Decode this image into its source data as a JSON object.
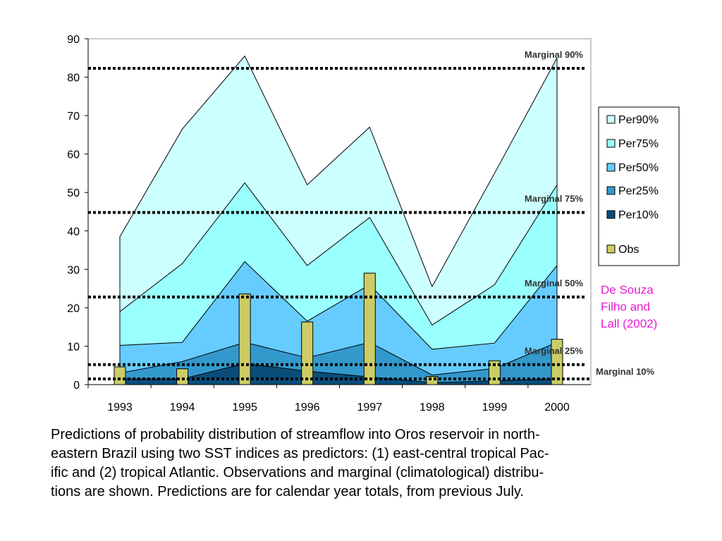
{
  "chart_data": {
    "type": "area",
    "categories": [
      "1993",
      "1994",
      "1995",
      "1996",
      "1997",
      "1998",
      "1999",
      "2000"
    ],
    "ylim": [
      0,
      90
    ],
    "yticks": [
      "0",
      "10",
      "20",
      "30",
      "40",
      "50",
      "60",
      "70",
      "80",
      "90"
    ],
    "grid": false,
    "legend_position": "right",
    "series": [
      {
        "name": "Per90%",
        "type": "area",
        "color": "#ccffff",
        "values": [
          38.5,
          66.5,
          85.5,
          52,
          67,
          25.5,
          55,
          85
        ]
      },
      {
        "name": "Per75%",
        "type": "area",
        "color": "#99ffff",
        "values": [
          19,
          31.5,
          52.5,
          31,
          43.5,
          15.5,
          26,
          52
        ]
      },
      {
        "name": "Per50%",
        "type": "area",
        "color": "#66ccff",
        "values": [
          10.2,
          11,
          32,
          16.5,
          26,
          9.2,
          10.8,
          31
        ]
      },
      {
        "name": "Per25%",
        "type": "area",
        "color": "#3399cc",
        "values": [
          3,
          6,
          11,
          7,
          11,
          2.5,
          4.2,
          11
        ]
      },
      {
        "name": "Per10%",
        "type": "area",
        "color": "#0a4d7a",
        "values": [
          1.5,
          1.5,
          5.5,
          3.5,
          2,
          0.5,
          1,
          1.5
        ]
      },
      {
        "name": "Obs",
        "type": "bar",
        "color": "#cccc66",
        "values": [
          4.6,
          4.1,
          23.6,
          16.3,
          29,
          2.1,
          6.2,
          11.8
        ]
      }
    ],
    "marginals": [
      {
        "label": "Marginal 90%",
        "value": 82.3
      },
      {
        "label": "Marginal 75%",
        "value": 44.8
      },
      {
        "label": "Marginal 50%",
        "value": 22.8
      },
      {
        "label": "Marginal 25%",
        "value": 5.2
      },
      {
        "label": "Marginal 10%",
        "value": 1.5
      }
    ]
  },
  "citation_lines": [
    "De Souza",
    "Filho and",
    "Lall (2002)"
  ],
  "caption_lines": [
    "Predictions of probability distribution of streamflow into Oros reservoir in north-",
    "eastern Brazil using two SST indices as predictors: (1) east-central tropical Pac-",
    "ific and (2) tropical Atlantic. Observations and marginal (climatological) distribu-",
    "tions are shown. Predictions are for calendar year totals, from previous July."
  ]
}
